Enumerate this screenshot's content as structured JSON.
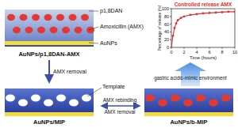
{
  "diagram": {
    "panels": [
      {
        "label": "AuNPs/p1,8DAN-AMX",
        "callouts": [
          "p1,8DAN",
          "Amoxicillin (AMX)",
          "AuNPs"
        ]
      },
      {
        "label": "AuNPs/MIP",
        "callouts": [
          "Template"
        ]
      },
      {
        "label": "AuNPs/b-MIP"
      }
    ],
    "arrows": [
      {
        "label": "AMX removal"
      },
      {
        "label": "AMX rebinding"
      },
      {
        "label": "AMX removal"
      },
      {
        "label": "gastric acidic-mimic environment"
      }
    ]
  },
  "chart_data": {
    "type": "line",
    "title": "Controlled release AMX",
    "x_label": "Time (hours)",
    "y_label": "Percentage of release (%)",
    "x": [
      0,
      0.25,
      0.5,
      0.75,
      1,
      1.5,
      2,
      3,
      4,
      5,
      6,
      7,
      8,
      9,
      10
    ],
    "values": [
      0,
      30,
      50,
      62,
      70,
      76,
      80,
      84,
      86,
      88,
      89,
      90,
      91,
      92,
      92
    ],
    "color": "#e03030",
    "marker": "circle",
    "xlim": [
      0,
      10
    ],
    "xticks": [
      0,
      2,
      4,
      6,
      8,
      10
    ],
    "ylim": [
      0,
      100
    ],
    "yticks": [
      0,
      20,
      40,
      60,
      80,
      100
    ]
  }
}
